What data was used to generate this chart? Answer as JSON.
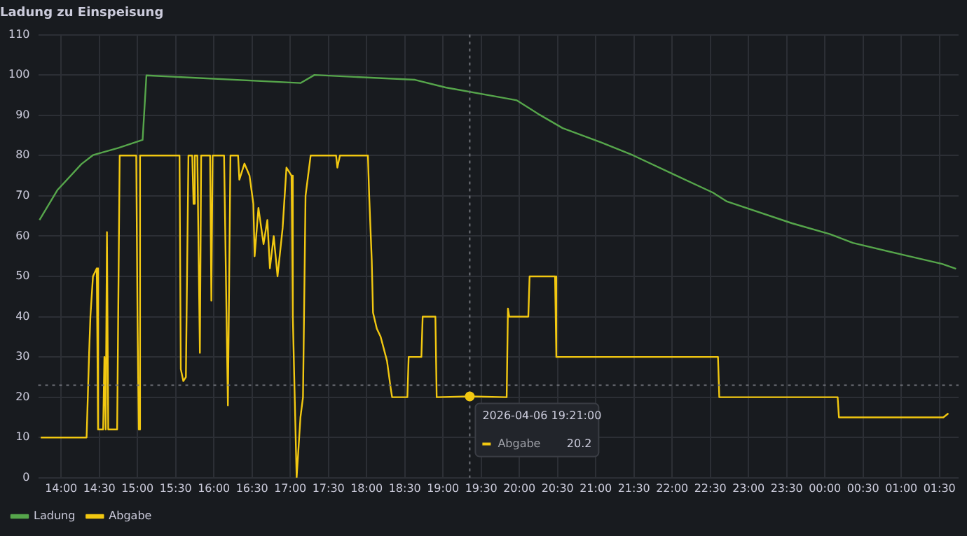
{
  "chart_data": {
    "type": "line",
    "title": "Ladung zu Einspeisung",
    "xlim": [
      "2026-04-06T13:42",
      "2026-04-07T01:45"
    ],
    "xticks": [
      {
        "value": "2026-04-06T14:00",
        "label": "14:00"
      },
      {
        "value": "2026-04-06T14:30",
        "label": "14:30"
      },
      {
        "value": "2026-04-06T15:00",
        "label": "15:00"
      },
      {
        "value": "2026-04-06T15:30",
        "label": "15:30"
      },
      {
        "value": "2026-04-06T16:00",
        "label": "16:00"
      },
      {
        "value": "2026-04-06T16:30",
        "label": "16:30"
      },
      {
        "value": "2026-04-06T17:00",
        "label": "17:00"
      },
      {
        "value": "2026-04-06T17:30",
        "label": "17:30"
      },
      {
        "value": "2026-04-06T18:00",
        "label": "18:00"
      },
      {
        "value": "2026-04-06T18:30",
        "label": "18:30"
      },
      {
        "value": "2026-04-06T19:00",
        "label": "19:00"
      },
      {
        "value": "2026-04-06T19:30",
        "label": "19:30"
      },
      {
        "value": "2026-04-06T20:00",
        "label": "20:00"
      },
      {
        "value": "2026-04-06T20:30",
        "label": "20:30"
      },
      {
        "value": "2026-04-06T21:00",
        "label": "21:00"
      },
      {
        "value": "2026-04-06T21:30",
        "label": "21:30"
      },
      {
        "value": "2026-04-06T22:00",
        "label": "22:00"
      },
      {
        "value": "2026-04-06T22:30",
        "label": "22:30"
      },
      {
        "value": "2026-04-06T23:00",
        "label": "23:00"
      },
      {
        "value": "2026-04-06T23:30",
        "label": "23:30"
      },
      {
        "value": "2026-04-07T00:00",
        "label": "00:00"
      },
      {
        "value": "2026-04-07T00:30",
        "label": "00:30"
      },
      {
        "value": "2026-04-07T01:00",
        "label": "01:00"
      },
      {
        "value": "2026-04-07T01:30",
        "label": "01:30"
      }
    ],
    "ylim": [
      0,
      110
    ],
    "yticks": [
      0,
      10,
      20,
      30,
      40,
      50,
      60,
      70,
      80,
      90,
      100,
      110
    ],
    "grid": true,
    "legend": "bottom left",
    "marker": "none",
    "line_style": "solid",
    "series": [
      {
        "name": "Ladung",
        "color": "#56a64b",
        "x": [
          "2026-04-06T13:43",
          "2026-04-06T13:57",
          "2026-04-06T14:16",
          "2026-04-06T14:25",
          "2026-04-06T14:45",
          "2026-04-06T15:04",
          "2026-04-06T15:07",
          "2026-04-06T17:08",
          "2026-04-06T17:19",
          "2026-04-06T18:38",
          "2026-04-06T19:02",
          "2026-04-06T19:46",
          "2026-04-06T19:58",
          "2026-04-06T20:16",
          "2026-04-06T20:34",
          "2026-04-06T21:04",
          "2026-04-06T21:29",
          "2026-04-06T22:02",
          "2026-04-06T22:32",
          "2026-04-06T22:43",
          "2026-04-06T23:34",
          "2026-04-07T00:04",
          "2026-04-07T00:22",
          "2026-04-07T01:06",
          "2026-04-07T01:32",
          "2026-04-07T01:43"
        ],
        "values": [
          64,
          71.4,
          77.9,
          80.1,
          81.9,
          83.9,
          99.9,
          98,
          100,
          98.8,
          96.9,
          94.4,
          93.7,
          90.1,
          86.8,
          83.3,
          80.1,
          75.2,
          70.8,
          68.6,
          63.2,
          60.5,
          58.3,
          55,
          53.1,
          51.9
        ]
      },
      {
        "name": "Abgabe",
        "color": "#f2c811",
        "x": [
          "2026-04-06T13:44",
          "2026-04-06T14:20",
          "2026-04-06T14:22",
          "2026-04-06T14:23",
          "2026-04-06T14:25",
          "2026-04-06T14:28",
          "2026-04-06T14:29",
          "2026-04-06T14:33",
          "2026-04-06T14:34",
          "2026-04-06T14:35",
          "2026-04-06T14:36",
          "2026-04-06T14:37",
          "2026-04-06T14:44",
          "2026-04-06T14:46",
          "2026-04-06T14:59",
          "2026-04-06T15:00",
          "2026-04-06T15:01",
          "2026-04-06T15:02",
          "2026-04-06T15:33",
          "2026-04-06T15:34",
          "2026-04-06T15:36",
          "2026-04-06T15:38",
          "2026-04-06T15:40",
          "2026-04-06T15:43",
          "2026-04-06T15:44",
          "2026-04-06T15:45",
          "2026-04-06T15:47",
          "2026-04-06T15:49",
          "2026-04-06T15:50",
          "2026-04-06T15:57",
          "2026-04-06T15:58",
          "2026-04-06T15:59",
          "2026-04-06T16:08",
          "2026-04-06T16:11",
          "2026-04-06T16:13",
          "2026-04-06T16:19",
          "2026-04-06T16:20",
          "2026-04-06T16:24",
          "2026-04-06T16:28",
          "2026-04-06T16:31",
          "2026-04-06T16:32",
          "2026-04-06T16:35",
          "2026-04-06T16:39",
          "2026-04-06T16:42",
          "2026-04-06T16:44",
          "2026-04-06T16:47",
          "2026-04-06T16:50",
          "2026-04-06T16:54",
          "2026-04-06T16:57",
          "2026-04-06T17:01",
          "2026-04-06T17:02",
          "2026-04-06T17:05",
          "2026-04-06T17:08",
          "2026-04-06T17:10",
          "2026-04-06T17:12",
          "2026-04-06T17:16",
          "2026-04-06T17:36",
          "2026-04-06T17:37",
          "2026-04-06T17:39",
          "2026-04-06T18:01",
          "2026-04-06T18:02",
          "2026-04-06T18:04",
          "2026-04-06T18:05",
          "2026-04-06T18:08",
          "2026-04-06T18:11",
          "2026-04-06T18:16",
          "2026-04-06T18:19",
          "2026-04-06T18:20",
          "2026-04-06T18:32",
          "2026-04-06T18:33",
          "2026-04-06T18:43",
          "2026-04-06T18:44",
          "2026-04-06T18:54",
          "2026-04-06T18:55",
          "2026-04-06T19:21",
          "2026-04-06T19:50",
          "2026-04-06T19:51",
          "2026-04-06T19:52",
          "2026-04-06T20:07",
          "2026-04-06T20:08",
          "2026-04-06T20:28",
          "2026-04-06T20:29",
          "2026-04-06T22:36",
          "2026-04-06T22:37",
          "2026-04-07T00:10",
          "2026-04-07T00:11",
          "2026-04-07T01:00",
          "2026-04-07T01:33",
          "2026-04-07T01:37"
        ],
        "values": [
          10,
          10,
          31,
          40,
          50,
          52,
          12,
          12,
          30,
          12,
          61,
          12,
          12,
          80,
          80,
          40,
          12,
          80,
          80,
          27,
          24,
          25,
          80,
          80,
          68,
          80,
          80,
          31,
          80,
          80,
          44,
          80,
          80,
          18,
          80,
          80,
          74,
          78,
          75,
          68,
          55,
          67,
          58,
          64,
          52,
          60,
          50,
          62,
          77,
          75,
          40,
          0,
          15,
          20,
          70,
          80,
          80,
          77,
          80,
          80,
          70,
          54,
          41,
          37,
          35,
          29,
          22,
          20,
          20,
          30,
          30,
          40,
          40,
          20,
          20.2,
          20,
          42,
          40,
          40,
          50,
          50,
          30,
          30,
          20,
          20,
          15,
          15,
          15,
          16
        ]
      }
    ],
    "ref_lines": [
      {
        "axis": "x",
        "value": "2026-04-06T19:21",
        "color": "#6e7178",
        "line_style": "dotted"
      },
      {
        "axis": "y",
        "value": 23,
        "color": "#6e7178",
        "line_style": "dotted"
      }
    ],
    "annotations": [
      {
        "text": "2026-04-06 19:21:00",
        "x": "2026-04-06T19:21",
        "y": 20.2
      },
      "20.2"
    ]
  }
}
